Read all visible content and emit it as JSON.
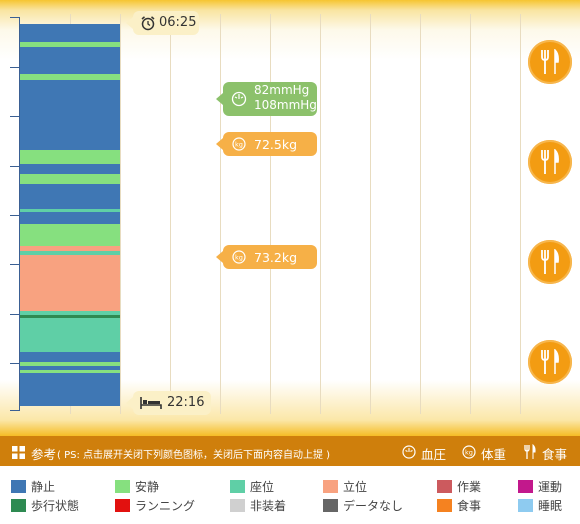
{
  "wake": {
    "time": "06:25",
    "icon": "alarm-clock-icon"
  },
  "sleep": {
    "time": "22:16",
    "icon": "bed-icon"
  },
  "readings": {
    "blood_pressure": {
      "line1": "82mmHg",
      "line2": "108mmHg",
      "icon": "blood-pressure-icon",
      "color": "#8cc16b"
    },
    "weight_1": {
      "value": "72.5kg",
      "icon": "kg-icon",
      "color": "#f6b047"
    },
    "weight_2": {
      "value": "73.2kg",
      "icon": "kg-icon",
      "color": "#f6b047"
    }
  },
  "meal_icon": "fork-knife-icon",
  "activity_colors": {
    "rest": "#3f77b4",
    "calm": "#86e07f",
    "seated": "#5fcfa6",
    "standing": "#f8a280",
    "walking": "#2e8a52"
  },
  "legend_header": {
    "title": "参考",
    "note": "( PS: 点击展开关闭下列颜色图标，关闭后下面内容自动上提 )",
    "bp_label": "血圧",
    "weight_label": "体重",
    "meal_label": "食事"
  },
  "legend": [
    {
      "label": "静止",
      "color": "#3f77b4"
    },
    {
      "label": "安静",
      "color": "#86e07f"
    },
    {
      "label": "座位",
      "color": "#5fcfa6"
    },
    {
      "label": "立位",
      "color": "#f8a280"
    },
    {
      "label": "作業",
      "color": "#cc5a5e"
    },
    {
      "label": "運動",
      "color": "#c2188c"
    },
    {
      "label": "歩行状態",
      "color": "#2e8a52"
    },
    {
      "label": "ランニング",
      "color": "#e2110f"
    },
    {
      "label": "非装着",
      "color": "#d0d0d0"
    },
    {
      "label": "データなし",
      "color": "#666666"
    },
    {
      "label": "食事",
      "color": "#f58220"
    },
    {
      "label": "睡眠",
      "color": "#8ecbf0"
    }
  ]
}
